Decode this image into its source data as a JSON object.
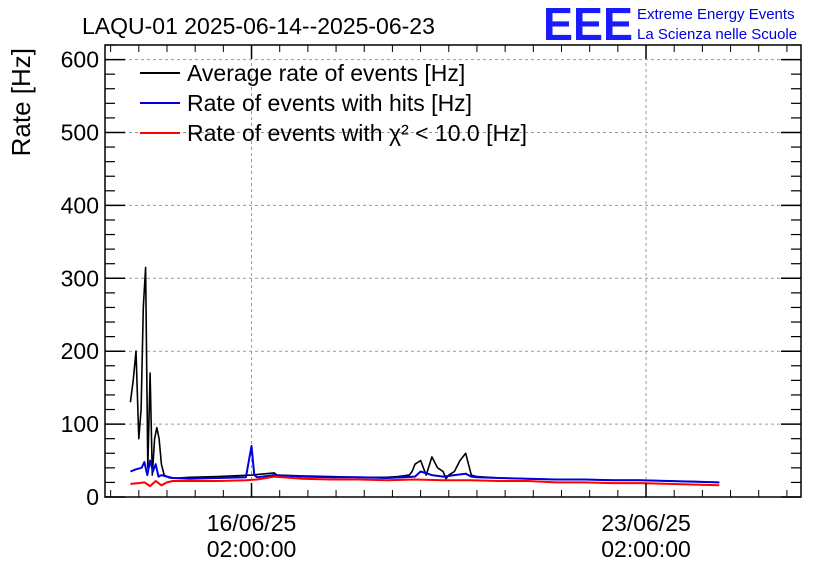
{
  "logo": {
    "mark": "EEE",
    "line1": "Extreme Energy Events",
    "line2": "La Scienza nelle Scuole",
    "color": "#1a1aff"
  },
  "chart_data": {
    "type": "line",
    "title": "LAQU-01 2025-06-14--2025-06-23",
    "ylabel": "Rate [Hz]",
    "xlabel": "",
    "ylim": [
      0,
      620
    ],
    "xlim_days": [
      0,
      12.35
    ],
    "y_ticks": [
      0,
      100,
      200,
      300,
      400,
      500,
      600
    ],
    "x_ticks": [
      {
        "day": 2.6,
        "label_line1": "16/06/25",
        "label_line2": "02:00:00"
      },
      {
        "day": 9.6,
        "label_line1": "23/06/25",
        "label_line2": "02:00:00"
      }
    ],
    "grid": true,
    "legend_position": "top-left",
    "series": [
      {
        "name": "Average rate of events [Hz]",
        "color": "#000000",
        "x": [
          0.45,
          0.5,
          0.55,
          0.6,
          0.64,
          0.68,
          0.72,
          0.76,
          0.8,
          0.84,
          0.88,
          0.92,
          0.96,
          1.0,
          1.05,
          1.1,
          1.15,
          1.2,
          1.3,
          1.5,
          2.0,
          2.6,
          3.0,
          3.05,
          3.5,
          4.0,
          4.5,
          5.0,
          5.2,
          5.4,
          5.45,
          5.5,
          5.6,
          5.7,
          5.8,
          5.9,
          6.0,
          6.05,
          6.1,
          6.2,
          6.3,
          6.4,
          6.45,
          6.5,
          6.6,
          7.0,
          7.5,
          8.0,
          8.5,
          9.0,
          9.5,
          10.0,
          10.5,
          10.9
        ],
        "y": [
          130,
          160,
          200,
          80,
          120,
          260,
          315,
          40,
          170,
          30,
          80,
          95,
          80,
          45,
          30,
          28,
          26,
          26,
          26,
          27,
          28,
          30,
          33,
          30,
          29,
          28,
          27,
          27,
          28,
          30,
          35,
          45,
          50,
          30,
          55,
          40,
          35,
          25,
          30,
          35,
          50,
          60,
          45,
          30,
          28,
          26,
          25,
          24,
          24,
          23,
          23,
          22,
          21,
          20
        ]
      },
      {
        "name": "Rate of events with hits [Hz]",
        "color": "#0000dd",
        "x": [
          0.45,
          0.55,
          0.65,
          0.7,
          0.75,
          0.8,
          0.85,
          0.9,
          0.95,
          1.0,
          1.1,
          1.2,
          1.5,
          2.0,
          2.5,
          2.6,
          2.65,
          2.7,
          3.0,
          3.5,
          4.0,
          4.5,
          5.0,
          5.3,
          5.5,
          5.6,
          5.8,
          6.0,
          6.2,
          6.4,
          6.5,
          6.6,
          7.0,
          7.5,
          8.0,
          8.5,
          9.0,
          9.5,
          10.0,
          10.5,
          10.9
        ],
        "y": [
          35,
          38,
          40,
          48,
          30,
          50,
          35,
          45,
          28,
          30,
          28,
          26,
          25,
          26,
          27,
          70,
          30,
          27,
          30,
          28,
          27,
          27,
          26,
          27,
          28,
          35,
          30,
          28,
          30,
          32,
          28,
          27,
          26,
          25,
          24,
          24,
          23,
          23,
          22,
          21,
          20
        ]
      },
      {
        "name": "Rate of events with χ² < 10.0 [Hz]",
        "color": "#ff0000",
        "x": [
          0.45,
          0.6,
          0.7,
          0.8,
          0.9,
          1.0,
          1.1,
          1.2,
          1.5,
          2.0,
          2.5,
          2.7,
          3.0,
          3.5,
          4.0,
          4.5,
          5.0,
          5.5,
          6.0,
          6.5,
          7.0,
          7.5,
          8.0,
          8.5,
          9.0,
          9.5,
          10.0,
          10.5,
          10.9
        ],
        "y": [
          18,
          19,
          20,
          15,
          22,
          16,
          20,
          22,
          22,
          22,
          23,
          24,
          28,
          25,
          24,
          24,
          23,
          24,
          23,
          23,
          22,
          22,
          20,
          20,
          19,
          19,
          18,
          17,
          16
        ]
      }
    ]
  }
}
